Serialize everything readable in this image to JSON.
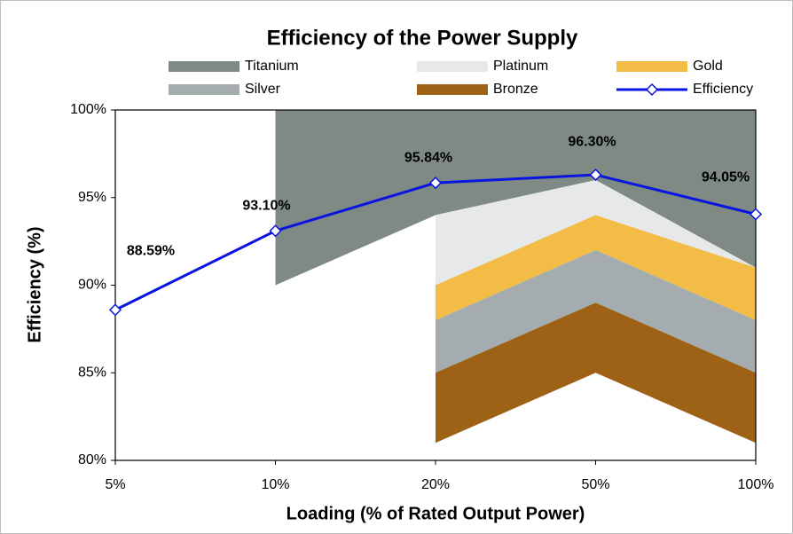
{
  "chart_data": {
    "type": "area-line",
    "title": "Efficiency of the Power Supply",
    "x_label": "Loading (% of Rated Output Power)",
    "y_label": "Efficiency (%)",
    "categories": [
      "5%",
      "10%",
      "20%",
      "50%",
      "100%"
    ],
    "ylim": [
      80,
      100
    ],
    "yticks": [
      {
        "value": 80,
        "label": "80%"
      },
      {
        "value": 85,
        "label": "85%"
      },
      {
        "value": 90,
        "label": "90%"
      },
      {
        "value": 95,
        "label": "95%"
      },
      {
        "value": 100,
        "label": "100%"
      }
    ],
    "series": [
      {
        "name": "Titanium",
        "color": "#7e8a83",
        "values": [
          null,
          90,
          94,
          96,
          91
        ]
      },
      {
        "name": "Platinum",
        "color": "#e7e8ea",
        "values": [
          null,
          null,
          94,
          96,
          91
        ]
      },
      {
        "name": "Gold",
        "color": "#f3bc47",
        "values": [
          null,
          null,
          90,
          94,
          91
        ]
      },
      {
        "name": "Silver",
        "color": "#a5acaf",
        "values": [
          null,
          null,
          88,
          92,
          88
        ]
      },
      {
        "name": "Bronze",
        "color": "#9e6216",
        "values": [
          null,
          null,
          85,
          89,
          85
        ],
        "base": [
          null,
          null,
          81,
          85,
          81
        ]
      },
      {
        "name": "Efficiency",
        "color": "#0a14e0",
        "values": [
          88.59,
          93.1,
          95.84,
          96.3,
          94.05
        ],
        "value_labels": [
          "88.59%",
          "93.10%",
          "95.84%",
          "96.30%",
          "94.05%"
        ]
      }
    ]
  }
}
